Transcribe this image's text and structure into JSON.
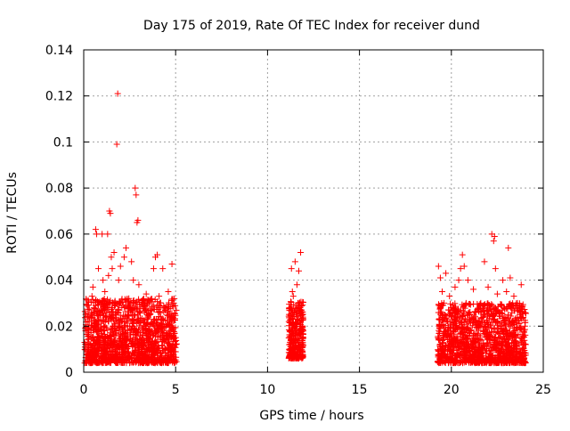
{
  "chart_data": {
    "type": "scatter",
    "title": "Day 175 of 2019, Rate Of TEC Index for receiver dund",
    "xlabel": "GPS time / hours",
    "ylabel": "ROTI / TECUs",
    "xlim": [
      0,
      25
    ],
    "ylim": [
      0,
      0.14
    ],
    "x_ticks": [
      0,
      5,
      10,
      15,
      20,
      25
    ],
    "x_tick_labels": [
      "0",
      "5",
      "10",
      "15",
      "20",
      "25"
    ],
    "y_ticks": [
      0,
      0.02,
      0.04,
      0.06,
      0.08,
      0.1,
      0.12,
      0.14
    ],
    "y_tick_labels": [
      "0",
      "0.02",
      "0.04",
      "0.06",
      "0.08",
      "0.1",
      "0.12",
      "0.14"
    ],
    "grid": true,
    "marker": "+",
    "color": "#ff0000",
    "series": [
      {
        "name": "ROTI",
        "points": [
          [
            0.1,
            0.018
          ],
          [
            0.2,
            0.012
          ],
          [
            0.3,
            0.022
          ],
          [
            0.4,
            0.015
          ],
          [
            0.45,
            0.033
          ],
          [
            0.5,
            0.037
          ],
          [
            0.55,
            0.028
          ],
          [
            0.6,
            0.02
          ],
          [
            0.65,
            0.062
          ],
          [
            0.7,
            0.06
          ],
          [
            0.75,
            0.014
          ],
          [
            0.8,
            0.045
          ],
          [
            0.85,
            0.01
          ],
          [
            0.9,
            0.025
          ],
          [
            0.95,
            0.03
          ],
          [
            1.0,
            0.06
          ],
          [
            1.05,
            0.04
          ],
          [
            1.1,
            0.018
          ],
          [
            1.15,
            0.035
          ],
          [
            1.2,
            0.028
          ],
          [
            1.25,
            0.009
          ],
          [
            1.3,
            0.06
          ],
          [
            1.35,
            0.042
          ],
          [
            1.4,
            0.07
          ],
          [
            1.45,
            0.069
          ],
          [
            1.5,
            0.05
          ],
          [
            1.55,
            0.045
          ],
          [
            1.6,
            0.03
          ],
          [
            1.65,
            0.052
          ],
          [
            1.7,
            0.02
          ],
          [
            1.75,
            0.012
          ],
          [
            1.8,
            0.099
          ],
          [
            1.85,
            0.121
          ],
          [
            1.9,
            0.04
          ],
          [
            1.95,
            0.03
          ],
          [
            2.0,
            0.046
          ],
          [
            2.1,
            0.015
          ],
          [
            2.2,
            0.05
          ],
          [
            2.3,
            0.054
          ],
          [
            2.4,
            0.025
          ],
          [
            2.5,
            0.02
          ],
          [
            2.6,
            0.048
          ],
          [
            2.7,
            0.04
          ],
          [
            2.8,
            0.08
          ],
          [
            2.85,
            0.077
          ],
          [
            2.9,
            0.065
          ],
          [
            2.95,
            0.066
          ],
          [
            3.0,
            0.038
          ],
          [
            3.1,
            0.022
          ],
          [
            3.2,
            0.016
          ],
          [
            3.3,
            0.03
          ],
          [
            3.4,
            0.034
          ],
          [
            3.5,
            0.012
          ],
          [
            3.6,
            0.027
          ],
          [
            3.7,
            0.018
          ],
          [
            3.8,
            0.045
          ],
          [
            3.9,
            0.05
          ],
          [
            4.0,
            0.051
          ],
          [
            4.1,
            0.033
          ],
          [
            4.2,
            0.024
          ],
          [
            4.3,
            0.045
          ],
          [
            4.4,
            0.028
          ],
          [
            4.5,
            0.014
          ],
          [
            4.6,
            0.035
          ],
          [
            4.7,
            0.02
          ],
          [
            4.8,
            0.047
          ],
          [
            4.9,
            0.03
          ],
          [
            5.0,
            0.012
          ],
          [
            11.2,
            0.015
          ],
          [
            11.3,
            0.045
          ],
          [
            11.35,
            0.035
          ],
          [
            11.4,
            0.033
          ],
          [
            11.45,
            0.025
          ],
          [
            11.5,
            0.048
          ],
          [
            11.55,
            0.02
          ],
          [
            11.6,
            0.038
          ],
          [
            11.65,
            0.03
          ],
          [
            11.7,
            0.044
          ],
          [
            11.75,
            0.018
          ],
          [
            11.8,
            0.052
          ],
          [
            11.85,
            0.027
          ],
          [
            11.9,
            0.012
          ],
          [
            19.3,
            0.046
          ],
          [
            19.4,
            0.041
          ],
          [
            19.5,
            0.035
          ],
          [
            19.6,
            0.03
          ],
          [
            19.7,
            0.043
          ],
          [
            19.8,
            0.022
          ],
          [
            19.9,
            0.033
          ],
          [
            20.0,
            0.028
          ],
          [
            20.1,
            0.012
          ],
          [
            20.2,
            0.037
          ],
          [
            20.3,
            0.02
          ],
          [
            20.4,
            0.04
          ],
          [
            20.5,
            0.045
          ],
          [
            20.6,
            0.051
          ],
          [
            20.7,
            0.046
          ],
          [
            20.8,
            0.03
          ],
          [
            20.9,
            0.04
          ],
          [
            21.0,
            0.025
          ],
          [
            21.2,
            0.036
          ],
          [
            21.4,
            0.019
          ],
          [
            21.6,
            0.03
          ],
          [
            21.8,
            0.048
          ],
          [
            22.0,
            0.037
          ],
          [
            22.2,
            0.06
          ],
          [
            22.3,
            0.057
          ],
          [
            22.35,
            0.059
          ],
          [
            22.4,
            0.045
          ],
          [
            22.5,
            0.034
          ],
          [
            22.6,
            0.026
          ],
          [
            22.8,
            0.04
          ],
          [
            23.0,
            0.035
          ],
          [
            23.1,
            0.054
          ],
          [
            23.2,
            0.041
          ],
          [
            23.4,
            0.033
          ],
          [
            23.6,
            0.03
          ],
          [
            23.8,
            0.038
          ],
          [
            24.0,
            0.02
          ]
        ],
        "clusters": [
          {
            "x_start": 0.05,
            "x_end": 5.05,
            "y_floor": 0.004,
            "y_range": 0.028,
            "count": 1400
          },
          {
            "x_start": 11.15,
            "x_end": 11.95,
            "y_floor": 0.006,
            "y_range": 0.025,
            "count": 320
          },
          {
            "x_start": 19.25,
            "x_end": 24.05,
            "y_floor": 0.004,
            "y_range": 0.026,
            "count": 1300
          }
        ]
      }
    ]
  }
}
